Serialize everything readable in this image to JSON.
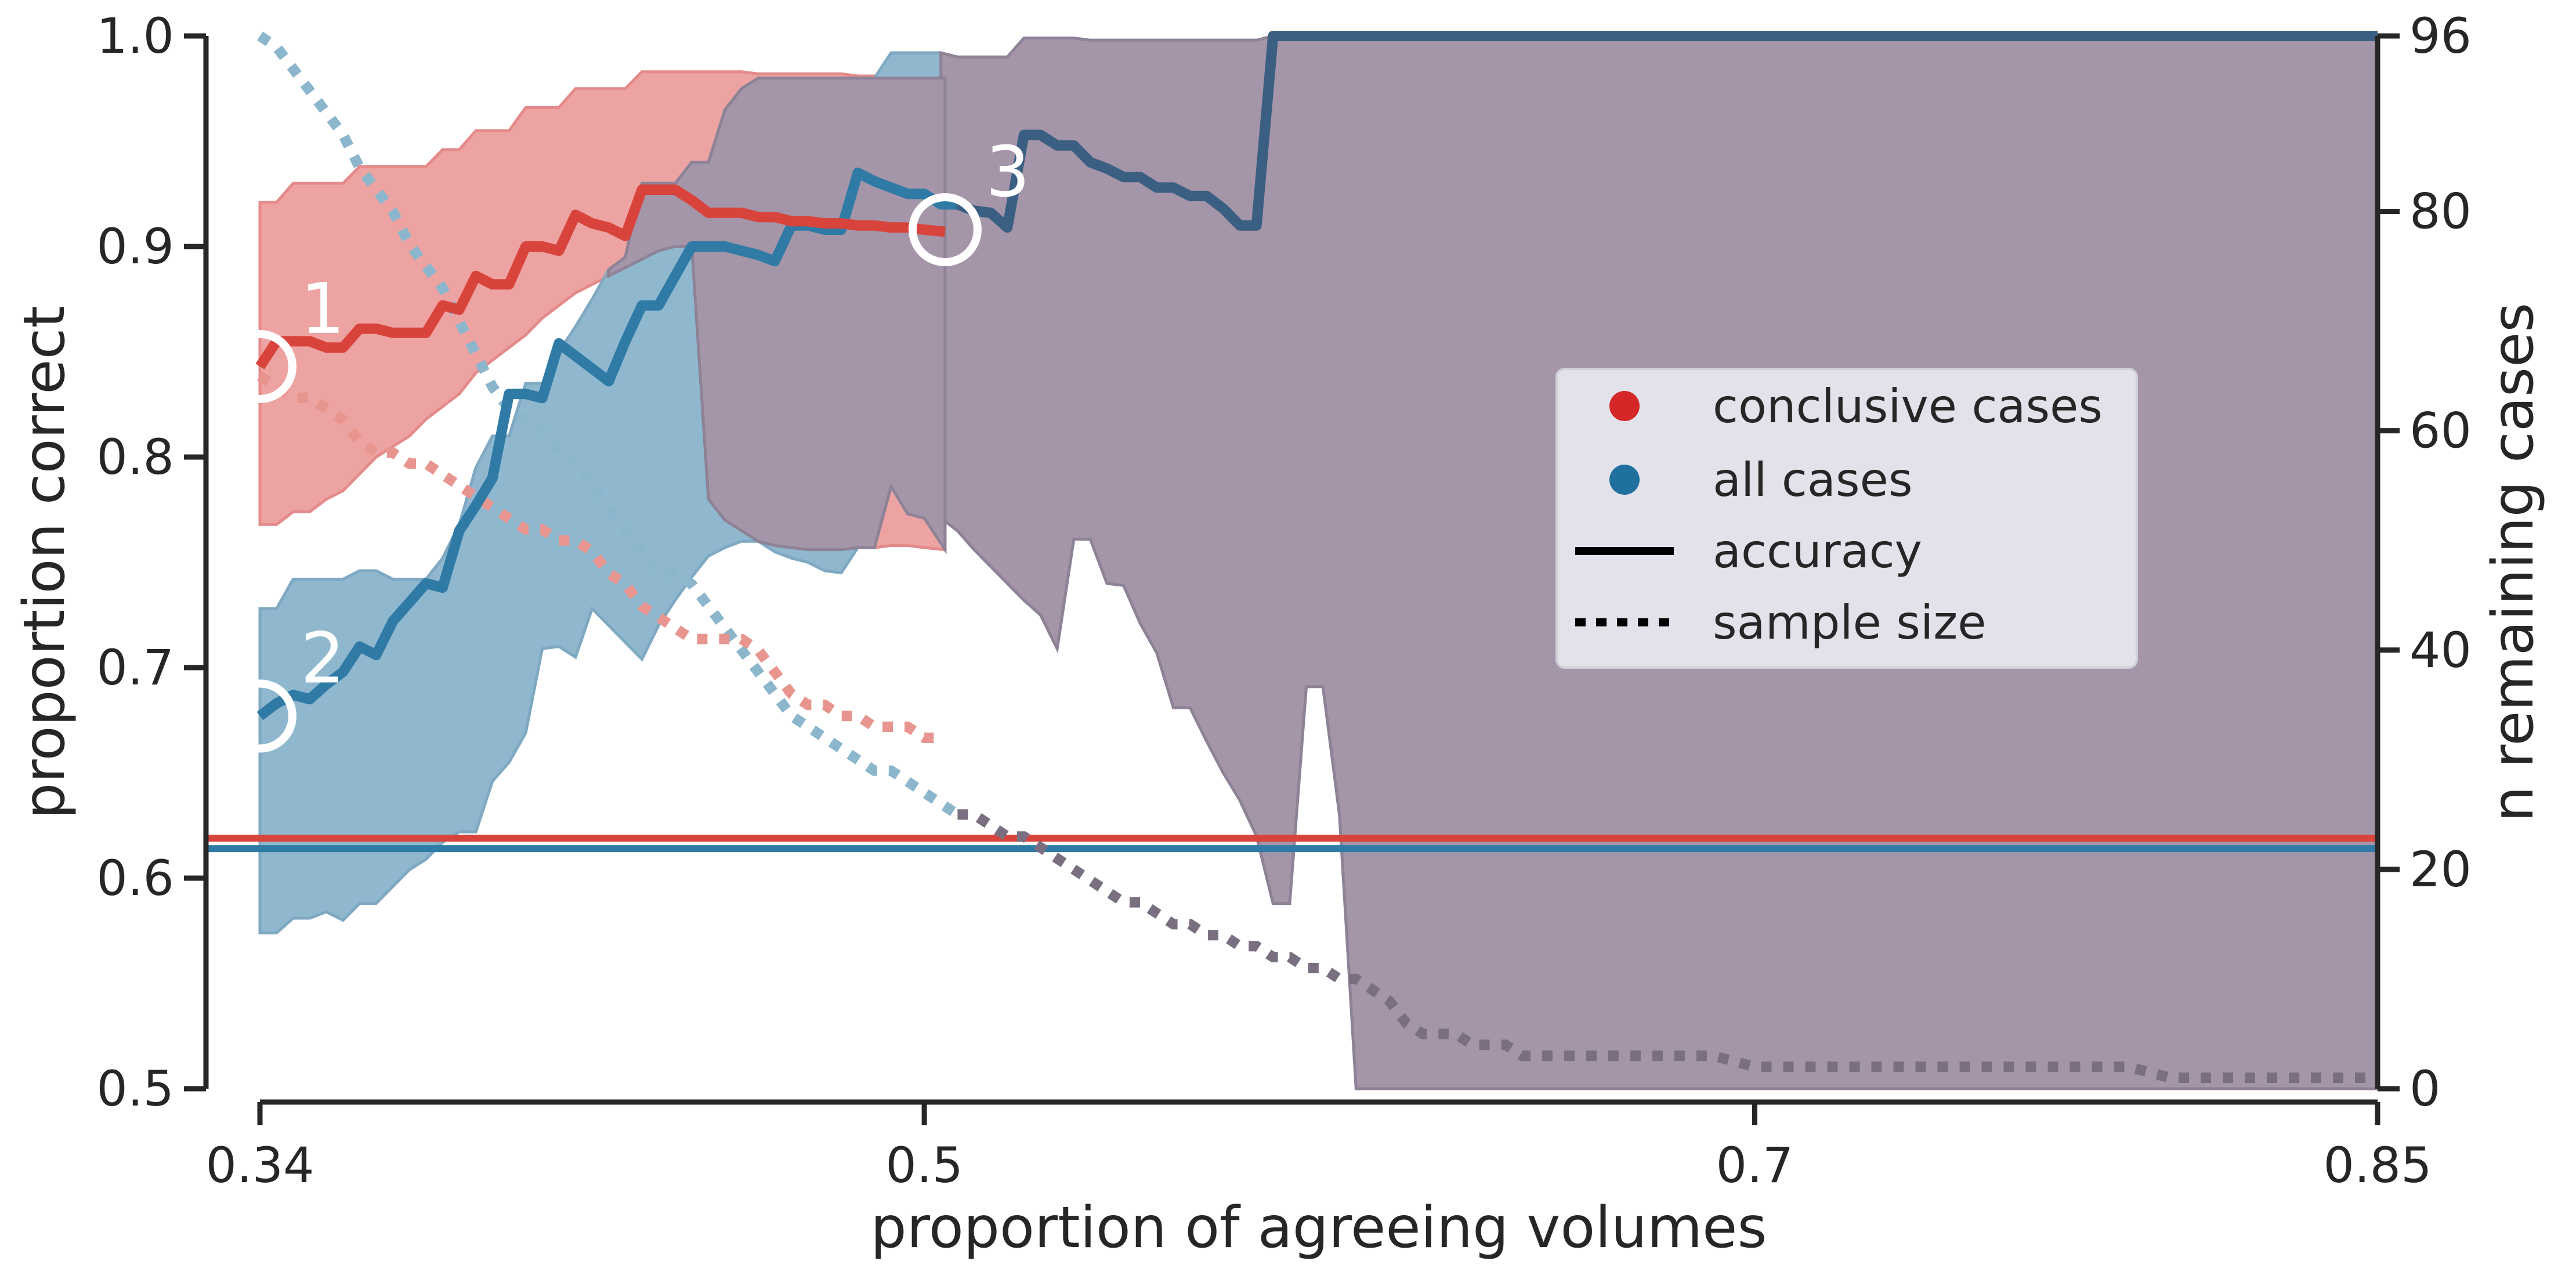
{
  "chart_data": {
    "type": "line",
    "title": "",
    "xlabel": "proportion of agreeing volumes",
    "ylabel": "proportion correct",
    "y2label": "n remaining cases",
    "xlim": [
      0.327,
      0.85
    ],
    "ylim": [
      0.5,
      1.0
    ],
    "y2lim": [
      0,
      96
    ],
    "xticks": [
      0.34,
      0.5,
      0.7,
      0.85
    ],
    "xtick_labels": [
      "0.34",
      "0.5",
      "0.7",
      "0.85"
    ],
    "yticks": [
      0.5,
      0.6,
      0.7,
      0.8,
      0.9,
      1.0
    ],
    "ytick_labels": [
      "0.5",
      "0.6",
      "0.7",
      "0.8",
      "0.9",
      "1.0"
    ],
    "y2ticks": [
      0,
      20,
      40,
      60,
      80,
      96
    ],
    "y2tick_labels": [
      "0",
      "20",
      "40",
      "60",
      "80",
      "96"
    ],
    "grid": false,
    "legend": {
      "placement": "center-right",
      "entries": [
        {
          "label": "conclusive cases",
          "marker": "dot",
          "color": "#d62728"
        },
        {
          "label": "all cases",
          "marker": "dot",
          "color": "#1f6f9f"
        },
        {
          "label": "accuracy",
          "marker": "solid-line",
          "color": "#000000"
        },
        {
          "label": "sample size",
          "marker": "dotted-line",
          "color": "#000000"
        }
      ]
    },
    "colors": {
      "conclusive": "#d8443c",
      "all": "#2f7ba6",
      "all_dark": "#3a5f82",
      "conclusive_band": "#eea3a3",
      "all_band": "#8fb8cf",
      "overlap_band": "#a595a8",
      "sample_conclusive": "#e8958f",
      "sample_all": "#8cb6cc",
      "sample_overlap": "#7a6f80"
    },
    "series": [
      {
        "name": "conclusive cases",
        "metric": "accuracy",
        "axis": "left",
        "x": [
          0.34,
          0.344,
          0.348,
          0.352,
          0.356,
          0.36,
          0.364,
          0.368,
          0.372,
          0.376,
          0.38,
          0.384,
          0.388,
          0.392,
          0.396,
          0.4,
          0.404,
          0.408,
          0.412,
          0.416,
          0.42,
          0.424,
          0.428,
          0.432,
          0.436,
          0.44,
          0.444,
          0.448,
          0.452,
          0.456,
          0.46,
          0.464,
          0.468,
          0.472,
          0.476,
          0.48,
          0.484,
          0.488,
          0.492,
          0.496,
          0.5,
          0.505
        ],
        "y": [
          0.843,
          0.855,
          0.855,
          0.855,
          0.852,
          0.852,
          0.861,
          0.861,
          0.859,
          0.859,
          0.859,
          0.872,
          0.87,
          0.886,
          0.882,
          0.882,
          0.9,
          0.9,
          0.898,
          0.915,
          0.911,
          0.909,
          0.905,
          0.927,
          0.927,
          0.927,
          0.922,
          0.916,
          0.916,
          0.916,
          0.914,
          0.914,
          0.912,
          0.912,
          0.911,
          0.911,
          0.91,
          0.91,
          0.909,
          0.909,
          0.908,
          0.907
        ],
        "band_low": [
          0.768,
          0.768,
          0.774,
          0.774,
          0.78,
          0.784,
          0.792,
          0.8,
          0.805,
          0.81,
          0.818,
          0.824,
          0.83,
          0.84,
          0.846,
          0.852,
          0.858,
          0.866,
          0.872,
          0.878,
          0.882,
          0.886,
          0.89,
          0.894,
          0.898,
          0.9,
          0.9,
          0.78,
          0.77,
          0.765,
          0.76,
          0.758,
          0.757,
          0.756,
          0.756,
          0.756,
          0.757,
          0.757,
          0.758,
          0.758,
          0.757,
          0.756
        ],
        "band_high": [
          0.921,
          0.921,
          0.93,
          0.93,
          0.93,
          0.93,
          0.938,
          0.938,
          0.938,
          0.938,
          0.938,
          0.946,
          0.946,
          0.955,
          0.955,
          0.955,
          0.966,
          0.966,
          0.966,
          0.975,
          0.975,
          0.975,
          0.975,
          0.983,
          0.983,
          0.983,
          0.983,
          0.983,
          0.983,
          0.983,
          0.982,
          0.982,
          0.982,
          0.982,
          0.982,
          0.982,
          0.981,
          0.981,
          0.98,
          0.98,
          0.98,
          0.98
        ]
      },
      {
        "name": "all cases",
        "metric": "accuracy",
        "axis": "left",
        "x": [
          0.34,
          0.344,
          0.348,
          0.352,
          0.356,
          0.36,
          0.364,
          0.368,
          0.372,
          0.376,
          0.38,
          0.384,
          0.388,
          0.392,
          0.396,
          0.4,
          0.404,
          0.408,
          0.412,
          0.416,
          0.42,
          0.424,
          0.428,
          0.432,
          0.436,
          0.44,
          0.444,
          0.448,
          0.452,
          0.456,
          0.46,
          0.464,
          0.468,
          0.472,
          0.476,
          0.48,
          0.484,
          0.488,
          0.492,
          0.496,
          0.5,
          0.504,
          0.508,
          0.512,
          0.516,
          0.52,
          0.524,
          0.528,
          0.532,
          0.536,
          0.54,
          0.544,
          0.548,
          0.552,
          0.556,
          0.56,
          0.564,
          0.568,
          0.572,
          0.576,
          0.58,
          0.584,
          0.588,
          0.592,
          0.596,
          0.6,
          0.604,
          0.608,
          0.612,
          0.616,
          0.62,
          0.624,
          0.628,
          0.632,
          0.636,
          0.64,
          0.644,
          0.648,
          0.652,
          0.656,
          0.7,
          0.75,
          0.8,
          0.85
        ],
        "y": [
          0.677,
          0.683,
          0.687,
          0.685,
          0.692,
          0.698,
          0.71,
          0.706,
          0.722,
          0.731,
          0.74,
          0.738,
          0.765,
          0.777,
          0.79,
          0.83,
          0.83,
          0.828,
          0.854,
          0.848,
          0.842,
          0.836,
          0.855,
          0.872,
          0.872,
          0.886,
          0.9,
          0.9,
          0.9,
          0.898,
          0.896,
          0.893,
          0.91,
          0.91,
          0.908,
          0.908,
          0.935,
          0.931,
          0.928,
          0.925,
          0.925,
          0.92,
          0.92,
          0.917,
          0.916,
          0.909,
          0.953,
          0.953,
          0.948,
          0.948,
          0.94,
          0.937,
          0.933,
          0.933,
          0.928,
          0.928,
          0.924,
          0.924,
          0.918,
          0.91,
          0.91,
          1.0,
          1.0,
          1.0,
          1.0,
          1.0,
          1.0,
          1.0,
          1.0,
          1.0,
          1.0,
          1.0,
          1.0,
          1.0,
          1.0,
          1.0,
          1.0,
          1.0,
          1.0,
          1.0,
          1.0,
          1.0,
          1.0,
          1.0
        ],
        "band_low": [
          0.574,
          0.574,
          0.581,
          0.581,
          0.584,
          0.58,
          0.588,
          0.588,
          0.596,
          0.604,
          0.609,
          0.617,
          0.622,
          0.622,
          0.646,
          0.655,
          0.669,
          0.709,
          0.71,
          0.705,
          0.728,
          0.72,
          0.712,
          0.704,
          0.72,
          0.732,
          0.743,
          0.753,
          0.757,
          0.76,
          0.76,
          0.755,
          0.752,
          0.75,
          0.746,
          0.745,
          0.757,
          0.757,
          0.786,
          0.773,
          0.771,
          0.771,
          0.765,
          0.756,
          0.748,
          0.74,
          0.732,
          0.725,
          0.709,
          0.761,
          0.761,
          0.74,
          0.739,
          0.721,
          0.707,
          0.681,
          0.681,
          0.665,
          0.65,
          0.637,
          0.62,
          0.588,
          0.588,
          0.691,
          0.691,
          0.63,
          0.5,
          0.5,
          0.5,
          0.5,
          0.5,
          0.5,
          0.5,
          0.5,
          0.5,
          0.5,
          0.5,
          0.5,
          0.5,
          0.5,
          0.5,
          0.5,
          0.5,
          0.5
        ],
        "band_high": [
          0.728,
          0.728,
          0.742,
          0.742,
          0.742,
          0.742,
          0.746,
          0.746,
          0.742,
          0.742,
          0.742,
          0.752,
          0.768,
          0.795,
          0.81,
          0.81,
          0.835,
          0.835,
          0.85,
          0.862,
          0.875,
          0.889,
          0.895,
          0.93,
          0.93,
          0.93,
          0.94,
          0.94,
          0.965,
          0.975,
          0.98,
          0.98,
          0.98,
          0.98,
          0.98,
          0.98,
          0.98,
          0.98,
          0.992,
          0.992,
          0.992,
          0.992,
          0.99,
          0.99,
          0.99,
          0.99,
          0.999,
          0.999,
          0.999,
          0.999,
          0.998,
          0.998,
          0.998,
          0.998,
          0.998,
          0.998,
          0.998,
          0.998,
          0.998,
          0.998,
          0.998,
          1.0,
          1.0,
          1.0,
          1.0,
          1.0,
          1.0,
          1.0,
          1.0,
          1.0,
          1.0,
          1.0,
          1.0,
          1.0,
          1.0,
          1.0,
          1.0,
          1.0,
          1.0,
          1.0,
          1.0,
          1.0,
          1.0,
          1.0
        ]
      },
      {
        "name": "conclusive cases",
        "metric": "sample size",
        "axis": "right",
        "x": [
          0.34,
          0.344,
          0.348,
          0.352,
          0.356,
          0.36,
          0.364,
          0.368,
          0.372,
          0.376,
          0.38,
          0.384,
          0.388,
          0.392,
          0.396,
          0.4,
          0.404,
          0.408,
          0.412,
          0.416,
          0.42,
          0.424,
          0.428,
          0.432,
          0.436,
          0.44,
          0.444,
          0.448,
          0.452,
          0.456,
          0.46,
          0.464,
          0.468,
          0.472,
          0.476,
          0.48,
          0.484,
          0.488,
          0.492,
          0.496,
          0.5,
          0.505
        ],
        "y": [
          65,
          64,
          63,
          63,
          62,
          61,
          59,
          58,
          58,
          57,
          57,
          56,
          55,
          54,
          53,
          52,
          51,
          51,
          50,
          50,
          49,
          47,
          46,
          44,
          43,
          42,
          41,
          41,
          41,
          41,
          40,
          38,
          36,
          35,
          35,
          34,
          34,
          33,
          33,
          33,
          32,
          32
        ]
      },
      {
        "name": "all cases",
        "metric": "sample size",
        "axis": "right",
        "x": [
          0.34,
          0.344,
          0.348,
          0.352,
          0.356,
          0.36,
          0.364,
          0.368,
          0.372,
          0.376,
          0.38,
          0.384,
          0.388,
          0.392,
          0.396,
          0.4,
          0.404,
          0.408,
          0.412,
          0.416,
          0.42,
          0.424,
          0.428,
          0.432,
          0.436,
          0.44,
          0.444,
          0.448,
          0.452,
          0.456,
          0.46,
          0.464,
          0.468,
          0.472,
          0.476,
          0.48,
          0.484,
          0.488,
          0.492,
          0.496,
          0.5,
          0.504,
          0.508,
          0.512,
          0.516,
          0.52,
          0.524,
          0.528,
          0.532,
          0.536,
          0.54,
          0.544,
          0.548,
          0.552,
          0.556,
          0.56,
          0.564,
          0.568,
          0.572,
          0.576,
          0.58,
          0.584,
          0.588,
          0.592,
          0.596,
          0.6,
          0.604,
          0.608,
          0.612,
          0.616,
          0.62,
          0.624,
          0.628,
          0.632,
          0.636,
          0.64,
          0.644,
          0.648,
          0.652,
          0.656,
          0.66,
          0.665,
          0.67,
          0.675,
          0.68,
          0.69,
          0.7,
          0.71,
          0.72,
          0.73,
          0.74,
          0.75,
          0.76,
          0.77,
          0.78,
          0.79,
          0.8,
          0.81,
          0.82,
          0.83,
          0.84,
          0.85
        ],
        "y": [
          96,
          95,
          93,
          91,
          89,
          87,
          84,
          82,
          80,
          77,
          75,
          73,
          70,
          67,
          64,
          62,
          61,
          60,
          58,
          57,
          55,
          53,
          51,
          49,
          47,
          47,
          46,
          44,
          42,
          40,
          38,
          36,
          34,
          33,
          32,
          31,
          30,
          29,
          29,
          28,
          27,
          26,
          25,
          25,
          24,
          23,
          23,
          22,
          21,
          20,
          19,
          18,
          17,
          17,
          16,
          15,
          15,
          14,
          14,
          13,
          13,
          12,
          12,
          11,
          11,
          10,
          10,
          9,
          8,
          6,
          5,
          5,
          5,
          4,
          4,
          4,
          3,
          3,
          3,
          3,
          3,
          3,
          3,
          3,
          3,
          3,
          2,
          2,
          2,
          2,
          2,
          2,
          2,
          2,
          2,
          2,
          1,
          1,
          1,
          1,
          1,
          1
        ]
      },
      {
        "name": "conclusive cases",
        "metric": "baseline accuracy",
        "axis": "left",
        "x": [
          0.327,
          0.85
        ],
        "y": [
          0.619,
          0.619
        ]
      },
      {
        "name": "all cases",
        "metric": "baseline accuracy",
        "axis": "left",
        "x": [
          0.327,
          0.85
        ],
        "y": [
          0.614,
          0.614
        ]
      }
    ],
    "annotations": [
      {
        "label": "1",
        "x": 0.34,
        "y": 0.843
      },
      {
        "label": "2",
        "x": 0.34,
        "y": 0.677
      },
      {
        "label": "3",
        "x": 0.505,
        "y": 0.908
      }
    ]
  }
}
